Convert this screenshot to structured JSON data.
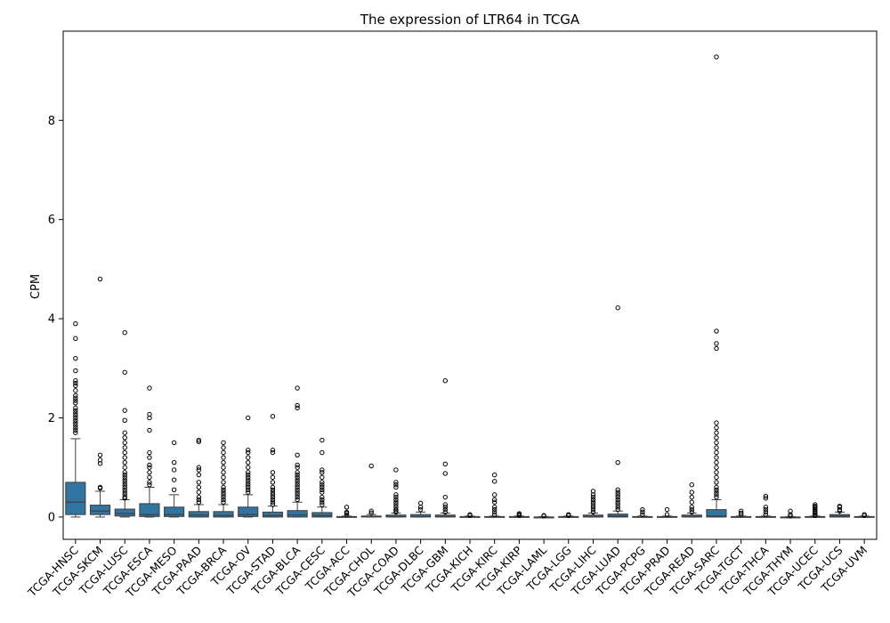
{
  "chart_data": {
    "type": "box",
    "title": "The expression of LTR64 in TCGA",
    "ylabel": "CPM",
    "xlabel": "",
    "ylim": [
      -0.45,
      9.8
    ],
    "yticks": [
      0,
      2,
      4,
      6,
      8
    ],
    "grid": false,
    "box_color": "#3274a1",
    "categories": [
      "TCGA-HNSC",
      "TCGA-SKCM",
      "TCGA-LUSC",
      "TCGA-ESCA",
      "TCGA-MESO",
      "TCGA-PAAD",
      "TCGA-BRCA",
      "TCGA-OV",
      "TCGA-STAD",
      "TCGA-BLCA",
      "TCGA-CESC",
      "TCGA-ACC",
      "TCGA-CHOL",
      "TCGA-COAD",
      "TCGA-DLBC",
      "TCGA-GBM",
      "TCGA-KICH",
      "TCGA-KIRC",
      "TCGA-KIRP",
      "TCGA-LAML",
      "TCGA-LGG",
      "TCGA-LIHC",
      "TCGA-LUAD",
      "TCGA-PCPG",
      "TCGA-PRAD",
      "TCGA-READ",
      "TCGA-SARC",
      "TCGA-TGCT",
      "TCGA-THCA",
      "TCGA-THYM",
      "TCGA-UCEC",
      "TCGA-UCS",
      "TCGA-UVM"
    ],
    "boxes": [
      {
        "min": 0.0,
        "q1": 0.05,
        "median": 0.3,
        "q3": 0.7,
        "max": 1.58,
        "outliers": [
          1.7,
          1.75,
          1.8,
          1.85,
          1.9,
          1.95,
          2.0,
          2.05,
          2.1,
          2.15,
          2.2,
          2.3,
          2.35,
          2.4,
          2.45,
          2.55,
          2.65,
          2.7,
          2.75,
          2.95,
          3.2,
          3.6,
          3.9
        ]
      },
      {
        "min": 0.0,
        "q1": 0.05,
        "median": 0.12,
        "q3": 0.24,
        "max": 0.52,
        "outliers": [
          0.58,
          0.6,
          1.08,
          1.15,
          1.25,
          4.8
        ]
      },
      {
        "min": 0.0,
        "q1": 0.02,
        "median": 0.07,
        "q3": 0.16,
        "max": 0.35,
        "outliers": [
          0.38,
          0.4,
          0.45,
          0.5,
          0.55,
          0.6,
          0.65,
          0.7,
          0.75,
          0.8,
          0.85,
          0.9,
          1.0,
          1.1,
          1.2,
          1.3,
          1.4,
          1.5,
          1.6,
          1.7,
          1.95,
          2.15,
          2.92,
          3.72
        ]
      },
      {
        "min": 0.0,
        "q1": 0.01,
        "median": 0.05,
        "q3": 0.27,
        "max": 0.6,
        "outliers": [
          0.65,
          0.7,
          0.8,
          0.9,
          1.0,
          1.05,
          1.2,
          1.3,
          1.75,
          2.0,
          2.07,
          2.6
        ]
      },
      {
        "min": 0.0,
        "q1": 0.01,
        "median": 0.05,
        "q3": 0.2,
        "max": 0.45,
        "outliers": [
          0.55,
          0.75,
          0.95,
          1.1,
          1.5
        ]
      },
      {
        "min": 0.0,
        "q1": 0.0,
        "median": 0.04,
        "q3": 0.11,
        "max": 0.25,
        "outliers": [
          0.3,
          0.35,
          0.4,
          0.5,
          0.6,
          0.7,
          0.85,
          0.95,
          1.0,
          1.52,
          1.55
        ]
      },
      {
        "min": 0.0,
        "q1": 0.0,
        "median": 0.03,
        "q3": 0.11,
        "max": 0.25,
        "outliers": [
          0.3,
          0.35,
          0.4,
          0.45,
          0.5,
          0.55,
          0.6,
          0.7,
          0.8,
          0.9,
          1.0,
          1.1,
          1.2,
          1.3,
          1.4,
          1.5
        ]
      },
      {
        "min": 0.0,
        "q1": 0.01,
        "median": 0.05,
        "q3": 0.2,
        "max": 0.45,
        "outliers": [
          0.5,
          0.55,
          0.6,
          0.65,
          0.7,
          0.75,
          0.8,
          0.85,
          0.9,
          1.0,
          1.1,
          1.2,
          1.3,
          1.35,
          2.0
        ]
      },
      {
        "min": 0.0,
        "q1": 0.0,
        "median": 0.03,
        "q3": 0.1,
        "max": 0.22,
        "outliers": [
          0.25,
          0.3,
          0.35,
          0.4,
          0.45,
          0.5,
          0.55,
          0.6,
          0.7,
          0.8,
          0.9,
          1.3,
          1.35,
          2.03
        ]
      },
      {
        "min": 0.0,
        "q1": 0.0,
        "median": 0.04,
        "q3": 0.13,
        "max": 0.3,
        "outliers": [
          0.35,
          0.4,
          0.45,
          0.5,
          0.55,
          0.6,
          0.65,
          0.7,
          0.75,
          0.8,
          0.85,
          0.9,
          1.0,
          1.05,
          1.25,
          2.2,
          2.25,
          2.6
        ]
      },
      {
        "min": 0.0,
        "q1": 0.0,
        "median": 0.03,
        "q3": 0.09,
        "max": 0.2,
        "outliers": [
          0.25,
          0.3,
          0.35,
          0.4,
          0.5,
          0.55,
          0.6,
          0.65,
          0.7,
          0.8,
          0.9,
          0.95,
          1.3,
          1.55
        ]
      },
      {
        "min": 0.0,
        "q1": 0.0,
        "median": 0.0,
        "q3": 0.01,
        "max": 0.02,
        "outliers": [
          0.05,
          0.08,
          0.1,
          0.2
        ]
      },
      {
        "min": 0.0,
        "q1": 0.0,
        "median": 0.01,
        "q3": 0.02,
        "max": 0.05,
        "outliers": [
          0.08,
          0.12,
          1.03
        ]
      },
      {
        "min": 0.0,
        "q1": 0.0,
        "median": 0.01,
        "q3": 0.04,
        "max": 0.08,
        "outliers": [
          0.1,
          0.12,
          0.15,
          0.2,
          0.25,
          0.3,
          0.35,
          0.4,
          0.45,
          0.6,
          0.65,
          0.7,
          0.95
        ]
      },
      {
        "min": 0.0,
        "q1": 0.0,
        "median": 0.01,
        "q3": 0.05,
        "max": 0.1,
        "outliers": [
          0.15,
          0.2,
          0.28
        ]
      },
      {
        "min": 0.0,
        "q1": 0.0,
        "median": 0.01,
        "q3": 0.04,
        "max": 0.08,
        "outliers": [
          0.1,
          0.15,
          0.2,
          0.25,
          0.4,
          0.88,
          1.07,
          2.75
        ]
      },
      {
        "min": 0.0,
        "q1": 0.0,
        "median": 0.0,
        "q3": 0.01,
        "max": 0.02,
        "outliers": [
          0.03,
          0.05
        ]
      },
      {
        "min": 0.0,
        "q1": 0.0,
        "median": 0.0,
        "q3": 0.01,
        "max": 0.02,
        "outliers": [
          0.05,
          0.1,
          0.15,
          0.2,
          0.3,
          0.35,
          0.45,
          0.72,
          0.85
        ]
      },
      {
        "min": 0.0,
        "q1": 0.0,
        "median": 0.0,
        "q3": 0.01,
        "max": 0.02,
        "outliers": [
          0.03,
          0.05,
          0.07
        ]
      },
      {
        "min": 0.0,
        "q1": 0.0,
        "median": 0.0,
        "q3": 0.0,
        "max": 0.01,
        "outliers": [
          0.02,
          0.03
        ]
      },
      {
        "min": 0.0,
        "q1": 0.0,
        "median": 0.0,
        "q3": 0.01,
        "max": 0.02,
        "outliers": [
          0.03,
          0.04,
          0.05
        ]
      },
      {
        "min": 0.0,
        "q1": 0.0,
        "median": 0.01,
        "q3": 0.04,
        "max": 0.08,
        "outliers": [
          0.1,
          0.15,
          0.2,
          0.25,
          0.3,
          0.35,
          0.4,
          0.45,
          0.52
        ]
      },
      {
        "min": 0.0,
        "q1": 0.0,
        "median": 0.02,
        "q3": 0.06,
        "max": 0.12,
        "outliers": [
          0.15,
          0.2,
          0.25,
          0.3,
          0.35,
          0.4,
          0.45,
          0.5,
          0.55,
          1.1,
          4.22
        ]
      },
      {
        "min": 0.0,
        "q1": 0.0,
        "median": 0.0,
        "q3": 0.01,
        "max": 0.02,
        "outliers": [
          0.05,
          0.1,
          0.15
        ]
      },
      {
        "min": 0.0,
        "q1": 0.0,
        "median": 0.0,
        "q3": 0.01,
        "max": 0.02,
        "outliers": [
          0.05,
          0.15
        ]
      },
      {
        "min": 0.0,
        "q1": 0.0,
        "median": 0.01,
        "q3": 0.04,
        "max": 0.08,
        "outliers": [
          0.1,
          0.15,
          0.2,
          0.3,
          0.4,
          0.5,
          0.65
        ]
      },
      {
        "min": 0.0,
        "q1": 0.0,
        "median": 0.02,
        "q3": 0.15,
        "max": 0.35,
        "outliers": [
          0.4,
          0.45,
          0.5,
          0.55,
          0.6,
          0.7,
          0.8,
          0.9,
          1.0,
          1.1,
          1.2,
          1.3,
          1.4,
          1.5,
          1.6,
          1.7,
          1.8,
          1.9,
          3.4,
          3.5,
          3.75,
          9.28
        ]
      },
      {
        "min": 0.0,
        "q1": 0.0,
        "median": 0.0,
        "q3": 0.01,
        "max": 0.02,
        "outliers": [
          0.05,
          0.08,
          0.12
        ]
      },
      {
        "min": 0.0,
        "q1": 0.0,
        "median": 0.0,
        "q3": 0.01,
        "max": 0.02,
        "outliers": [
          0.05,
          0.1,
          0.15,
          0.2,
          0.38,
          0.42
        ]
      },
      {
        "min": 0.0,
        "q1": 0.0,
        "median": 0.0,
        "q3": 0.0,
        "max": 0.01,
        "outliers": [
          0.02,
          0.05,
          0.12
        ]
      },
      {
        "min": 0.0,
        "q1": 0.0,
        "median": 0.0,
        "q3": 0.01,
        "max": 0.02,
        "outliers": [
          0.03,
          0.05,
          0.08,
          0.1,
          0.12,
          0.15,
          0.18,
          0.2,
          0.22,
          0.25
        ]
      },
      {
        "min": 0.0,
        "q1": 0.0,
        "median": 0.02,
        "q3": 0.05,
        "max": 0.1,
        "outliers": [
          0.12,
          0.15,
          0.2,
          0.22
        ]
      },
      {
        "min": 0.0,
        "q1": 0.0,
        "median": 0.0,
        "q3": 0.01,
        "max": 0.02,
        "outliers": [
          0.03,
          0.05
        ]
      }
    ]
  }
}
